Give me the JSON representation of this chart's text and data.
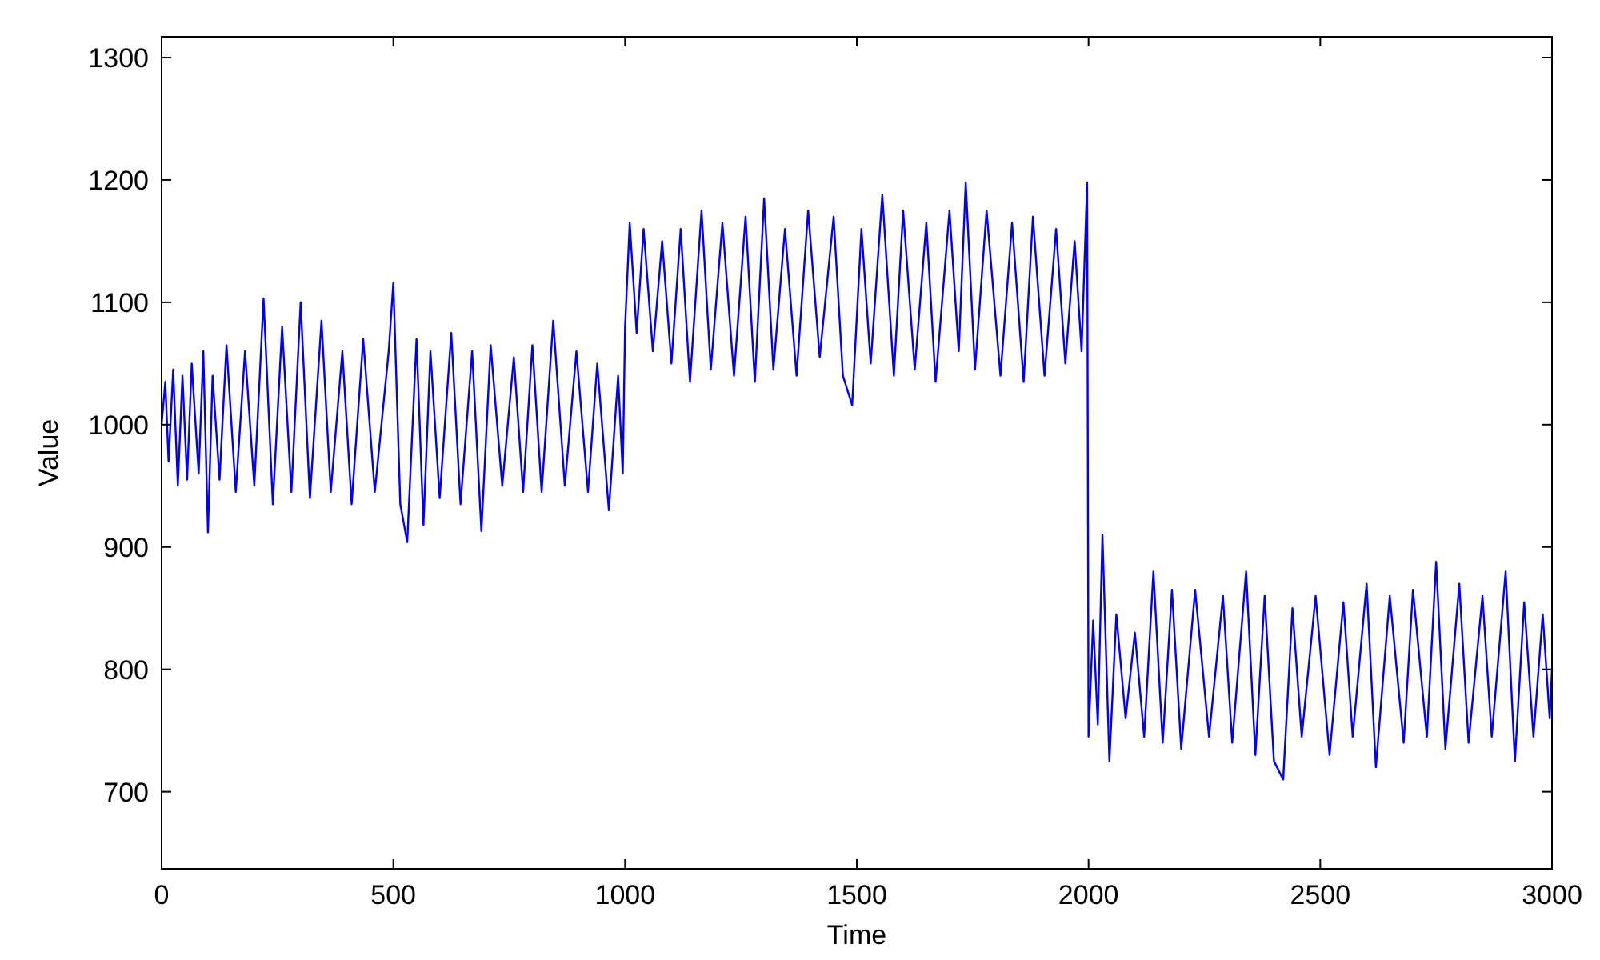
{
  "chart_data": {
    "type": "line",
    "xlabel": "Time",
    "ylabel": "Value",
    "xlim": [
      0,
      3000
    ],
    "ylim": [
      637,
      1317
    ],
    "xticks": [
      0,
      500,
      1000,
      1500,
      2000,
      2500,
      3000
    ],
    "yticks": [
      700,
      800,
      900,
      1000,
      1100,
      1200,
      1300
    ],
    "grid": false,
    "line_style": "solid",
    "series": [
      {
        "color": "#0000ff",
        "x": [
          0,
          8,
          15,
          25,
          35,
          45,
          55,
          65,
          80,
          90,
          100,
          110,
          125,
          140,
          160,
          180,
          200,
          220,
          240,
          260,
          280,
          300,
          320,
          345,
          365,
          390,
          410,
          435,
          460,
          490,
          500,
          515,
          530,
          550,
          565,
          580,
          600,
          625,
          645,
          670,
          690,
          710,
          735,
          760,
          780,
          800,
          820,
          845,
          870,
          895,
          920,
          940,
          965,
          985,
          995,
          1000,
          1010,
          1025,
          1040,
          1060,
          1080,
          1100,
          1120,
          1140,
          1165,
          1185,
          1210,
          1235,
          1260,
          1280,
          1300,
          1320,
          1345,
          1370,
          1395,
          1420,
          1450,
          1470,
          1490,
          1510,
          1530,
          1555,
          1580,
          1600,
          1625,
          1650,
          1670,
          1700,
          1720,
          1735,
          1755,
          1780,
          1810,
          1835,
          1860,
          1880,
          1905,
          1930,
          1950,
          1970,
          1985,
          1997,
          2000,
          2010,
          2020,
          2030,
          2045,
          2060,
          2080,
          2100,
          2120,
          2140,
          2160,
          2180,
          2200,
          2230,
          2260,
          2290,
          2310,
          2340,
          2360,
          2380,
          2400,
          2420,
          2440,
          2460,
          2490,
          2520,
          2550,
          2570,
          2600,
          2620,
          2650,
          2680,
          2700,
          2730,
          2750,
          2770,
          2800,
          2820,
          2850,
          2870,
          2900,
          2920,
          2940,
          2960,
          2980,
          2995,
          3000
        ],
        "values": [
          1000,
          1035,
          970,
          1045,
          950,
          1040,
          955,
          1050,
          960,
          1060,
          912,
          1040,
          955,
          1065,
          945,
          1060,
          950,
          1103,
          935,
          1080,
          945,
          1100,
          940,
          1085,
          945,
          1060,
          935,
          1070,
          945,
          1060,
          1116,
          935,
          904,
          1070,
          918,
          1060,
          940,
          1075,
          935,
          1060,
          913,
          1065,
          950,
          1055,
          945,
          1065,
          945,
          1085,
          950,
          1060,
          945,
          1050,
          930,
          1040,
          960,
          1080,
          1165,
          1075,
          1160,
          1060,
          1150,
          1050,
          1160,
          1035,
          1175,
          1045,
          1165,
          1040,
          1170,
          1035,
          1185,
          1045,
          1160,
          1040,
          1175,
          1055,
          1170,
          1040,
          1016,
          1160,
          1050,
          1188,
          1040,
          1175,
          1045,
          1165,
          1035,
          1175,
          1060,
          1198,
          1045,
          1175,
          1040,
          1165,
          1035,
          1170,
          1040,
          1160,
          1050,
          1150,
          1060,
          1198,
          745,
          840,
          755,
          910,
          725,
          845,
          760,
          830,
          745,
          880,
          740,
          865,
          735,
          865,
          745,
          860,
          740,
          880,
          730,
          860,
          725,
          710,
          850,
          745,
          860,
          730,
          855,
          745,
          870,
          720,
          860,
          740,
          865,
          745,
          888,
          735,
          870,
          740,
          860,
          745,
          880,
          725,
          855,
          745,
          845,
          760,
          800
        ]
      }
    ]
  }
}
